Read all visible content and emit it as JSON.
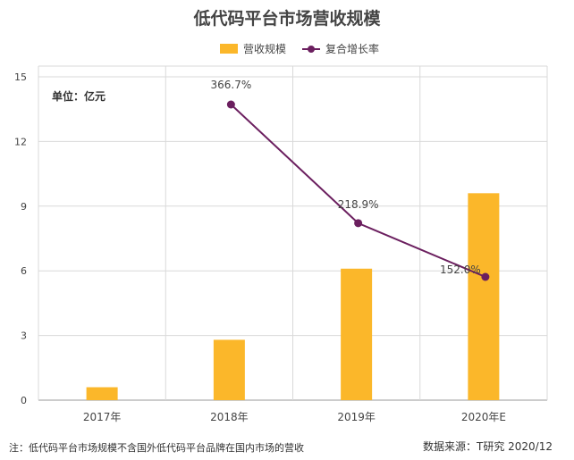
{
  "title": "低代码平台市场营收规模",
  "legend": {
    "bar_label": "营收规模",
    "line_label": "复合增长率"
  },
  "unit_label": "单位：亿元",
  "note": "注：低代码平台市场规模不含国外低代码平台品牌在国内市场的营收",
  "source": "数据来源：T研究 2020/12",
  "colors": {
    "bar": "#fbb72a",
    "line": "#6b1f5f",
    "grid": "#d9d9d9",
    "axis": "#999999"
  },
  "chart_data": {
    "type": "bar",
    "categories": [
      "2017年",
      "2018年",
      "2019年",
      "2020年E"
    ],
    "series": [
      {
        "name": "营收规模",
        "type": "bar",
        "values": [
          0.6,
          2.8,
          6.1,
          9.6
        ]
      },
      {
        "name": "复合增长率",
        "type": "line",
        "values": [
          null,
          366.7,
          218.9,
          152.0
        ],
        "labels": [
          "",
          "366.7%",
          "218.9%",
          "152.0%"
        ]
      }
    ],
    "ylim": [
      0,
      15
    ],
    "yticks": [
      "0",
      "3",
      "6",
      "9",
      "12",
      "15"
    ],
    "xlabel": "",
    "ylabel": "",
    "grid": true,
    "legend_position": "top-center"
  }
}
